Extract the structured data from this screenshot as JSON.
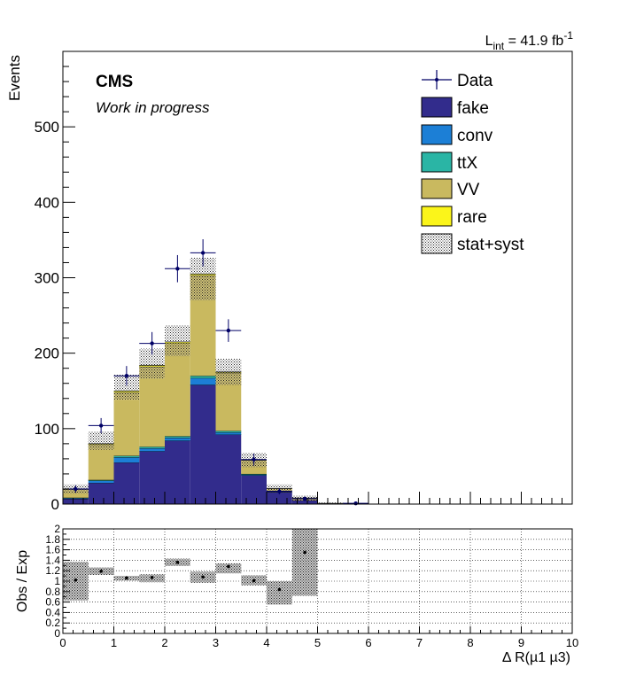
{
  "header": {
    "lumi_prefix": "L",
    "lumi_subscript": "int",
    "lumi_value": " = 41.9 fb",
    "lumi_exponent": "-1",
    "cms_label": "CMS",
    "work_label": "Work in progress"
  },
  "colors": {
    "fake": "#322c8c",
    "conv": "#1c7fd6",
    "ttX": "#2ab5a5",
    "VV": "#c9b95f",
    "rare": "#fbf51a",
    "data": "#000066",
    "ratio_band": "#a8a8a8"
  },
  "chart_data": [
    {
      "type": "bar",
      "stacked": true,
      "title": "",
      "ylabel": "Events",
      "xlabel": "",
      "xlim": [
        0,
        10
      ],
      "ylim": [
        0,
        600
      ],
      "yticks": [
        "0",
        "100",
        "200",
        "300",
        "400",
        "500"
      ],
      "bin_edges": [
        0,
        0.5,
        1,
        1.5,
        2,
        2.5,
        3,
        3.5,
        4,
        4.5,
        5,
        5.5,
        6,
        6.5,
        7,
        7.5,
        8,
        8.5,
        9,
        9.5,
        10
      ],
      "series": [
        {
          "name": "fake",
          "values": [
            7,
            28,
            55,
            70,
            84,
            158,
            92,
            38,
            16,
            5,
            0.5,
            0.2,
            0,
            0,
            0,
            0,
            0,
            0,
            0,
            0
          ]
        },
        {
          "name": "conv",
          "values": [
            1,
            3,
            7,
            4,
            4,
            9,
            3,
            1,
            0,
            0,
            0,
            0,
            0,
            0,
            0,
            0,
            0,
            0,
            0,
            0
          ]
        },
        {
          "name": "ttX",
          "values": [
            0.5,
            1,
            2,
            2,
            2,
            3,
            2,
            1,
            0.5,
            0,
            0,
            0,
            0,
            0,
            0,
            0,
            0,
            0,
            0,
            0
          ]
        },
        {
          "name": "VV",
          "values": [
            11,
            47,
            84,
            106,
            123,
            133,
            77,
            18,
            4,
            3,
            0.5,
            0,
            0,
            0,
            0,
            0,
            0,
            0,
            0,
            0
          ]
        },
        {
          "name": "rare",
          "values": [
            0.5,
            1,
            2,
            2,
            2,
            2,
            1,
            0.5,
            0.2,
            0,
            0,
            0,
            0,
            0,
            0,
            0,
            0,
            0,
            0,
            0
          ]
        }
      ],
      "syst_band": [
        [
          14,
          26
        ],
        [
          72,
          96
        ],
        [
          138,
          172
        ],
        [
          166,
          206
        ],
        [
          196,
          237
        ],
        [
          270,
          327
        ],
        [
          158,
          193
        ],
        [
          49,
          68
        ],
        [
          16,
          26
        ],
        [
          5,
          11
        ],
        [
          0,
          2
        ],
        [
          0,
          1
        ],
        [
          0,
          0
        ],
        [
          0,
          0
        ],
        [
          0,
          0
        ],
        [
          0,
          0
        ],
        [
          0,
          0
        ],
        [
          0,
          0
        ],
        [
          0,
          0
        ],
        [
          0,
          0
        ]
      ],
      "data_points": [
        {
          "x": 0.25,
          "y": 20,
          "err": 5
        },
        {
          "x": 0.75,
          "y": 104,
          "err": 10
        },
        {
          "x": 1.25,
          "y": 170,
          "err": 13
        },
        {
          "x": 1.75,
          "y": 213,
          "err": 15
        },
        {
          "x": 2.25,
          "y": 312,
          "err": 18
        },
        {
          "x": 2.75,
          "y": 333,
          "err": 18
        },
        {
          "x": 3.25,
          "y": 230,
          "err": 15
        },
        {
          "x": 3.75,
          "y": 59,
          "err": 8
        },
        {
          "x": 4.25,
          "y": 17,
          "err": 4
        },
        {
          "x": 4.75,
          "y": 7,
          "err": 3
        },
        {
          "x": 5.75,
          "y": 1,
          "err": 1
        }
      ],
      "legend": [
        "Data",
        "fake",
        "conv",
        "ttX",
        "VV",
        "rare",
        "stat+syst"
      ],
      "legend_position": "top-right"
    },
    {
      "type": "scatter",
      "title": "",
      "ylabel": "Obs / Exp",
      "xlabel": "Δ R(µ1 µ3)",
      "xlim": [
        0,
        10
      ],
      "ylim": [
        0,
        2
      ],
      "xticks": [
        "0",
        "1",
        "2",
        "3",
        "4",
        "5",
        "6",
        "7",
        "8",
        "9",
        "10"
      ],
      "yticks": [
        "0",
        "0.2",
        "0.4",
        "0.6",
        "0.8",
        "1",
        "1.2",
        "1.4",
        "1.6",
        "1.8",
        "2"
      ],
      "band": [
        [
          0.63,
          1.37
        ],
        [
          1.12,
          1.26
        ],
        [
          1.01,
          1.1
        ],
        [
          0.98,
          1.13
        ],
        [
          1.29,
          1.43
        ],
        [
          0.97,
          1.18
        ],
        [
          1.15,
          1.34
        ],
        [
          0.92,
          1.11
        ],
        [
          0.55,
          1.0
        ],
        [
          0.72,
          2.0
        ],
        [
          0,
          0
        ],
        [
          0,
          0
        ],
        [
          0,
          0
        ],
        [
          0,
          0
        ],
        [
          0,
          0
        ],
        [
          0,
          0
        ],
        [
          0,
          0
        ],
        [
          0,
          0
        ],
        [
          0,
          0
        ],
        [
          0,
          0
        ]
      ],
      "points": [
        {
          "x": 0.25,
          "y": 1.02
        },
        {
          "x": 0.75,
          "y": 1.19
        },
        {
          "x": 1.25,
          "y": 1.06
        },
        {
          "x": 1.75,
          "y": 1.07
        },
        {
          "x": 2.25,
          "y": 1.36
        },
        {
          "x": 2.75,
          "y": 1.08
        },
        {
          "x": 3.25,
          "y": 1.28
        },
        {
          "x": 3.75,
          "y": 1.01
        },
        {
          "x": 4.25,
          "y": 0.84
        },
        {
          "x": 4.75,
          "y": 1.55
        }
      ]
    }
  ]
}
